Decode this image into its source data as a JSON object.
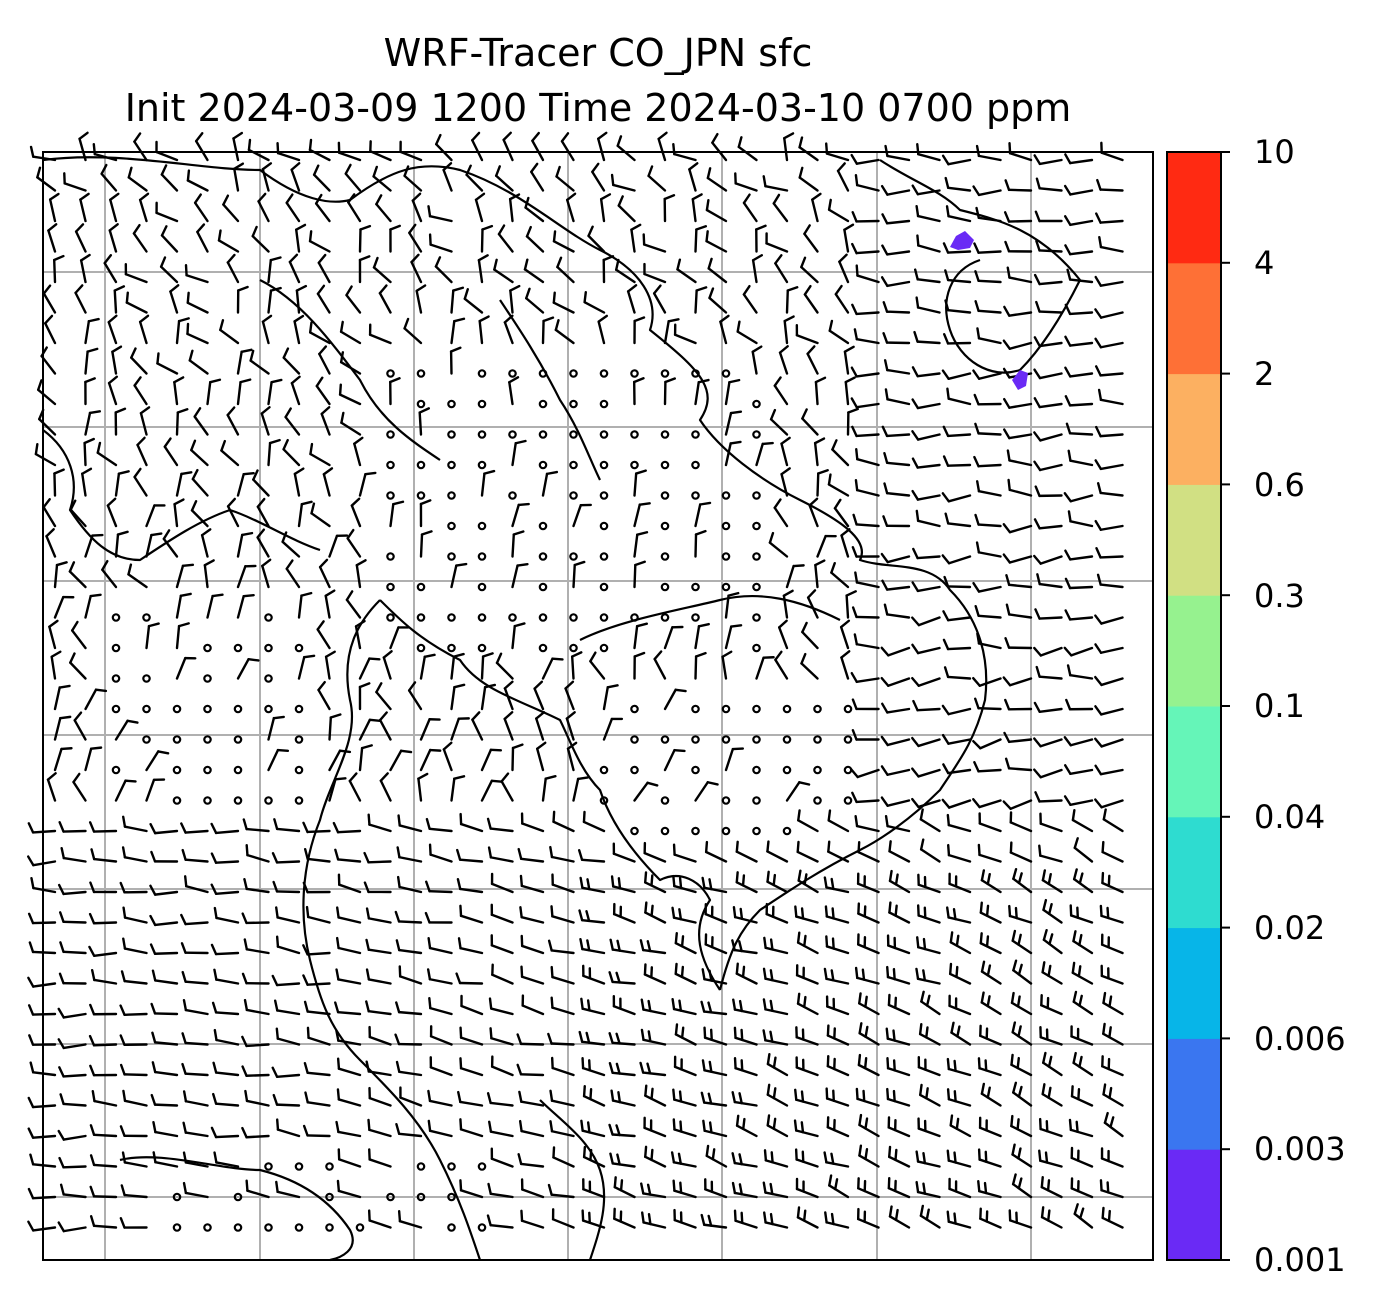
{
  "title": {
    "line1": "WRF-Tracer CO_JPN sfc",
    "line2": "Init 2024-03-09 1200 Time 2024-03-10 0700 ppm"
  },
  "colorbar": {
    "levels": [
      "0.001",
      "0.003",
      "0.006",
      "0.02",
      "0.04",
      "0.1",
      "0.3",
      "0.6",
      "2",
      "4",
      "10"
    ],
    "colors": [
      "#6a2af5",
      "#3a76f0",
      "#07b5e8",
      "#2edcd0",
      "#65f5b8",
      "#96f28f",
      "#d1e083",
      "#fcb061",
      "#fe7036",
      "#ff2a12"
    ]
  },
  "map": {
    "gridlines": true,
    "overlay": "wind barbs",
    "tracer_patches_color": "#6a2af5"
  }
}
